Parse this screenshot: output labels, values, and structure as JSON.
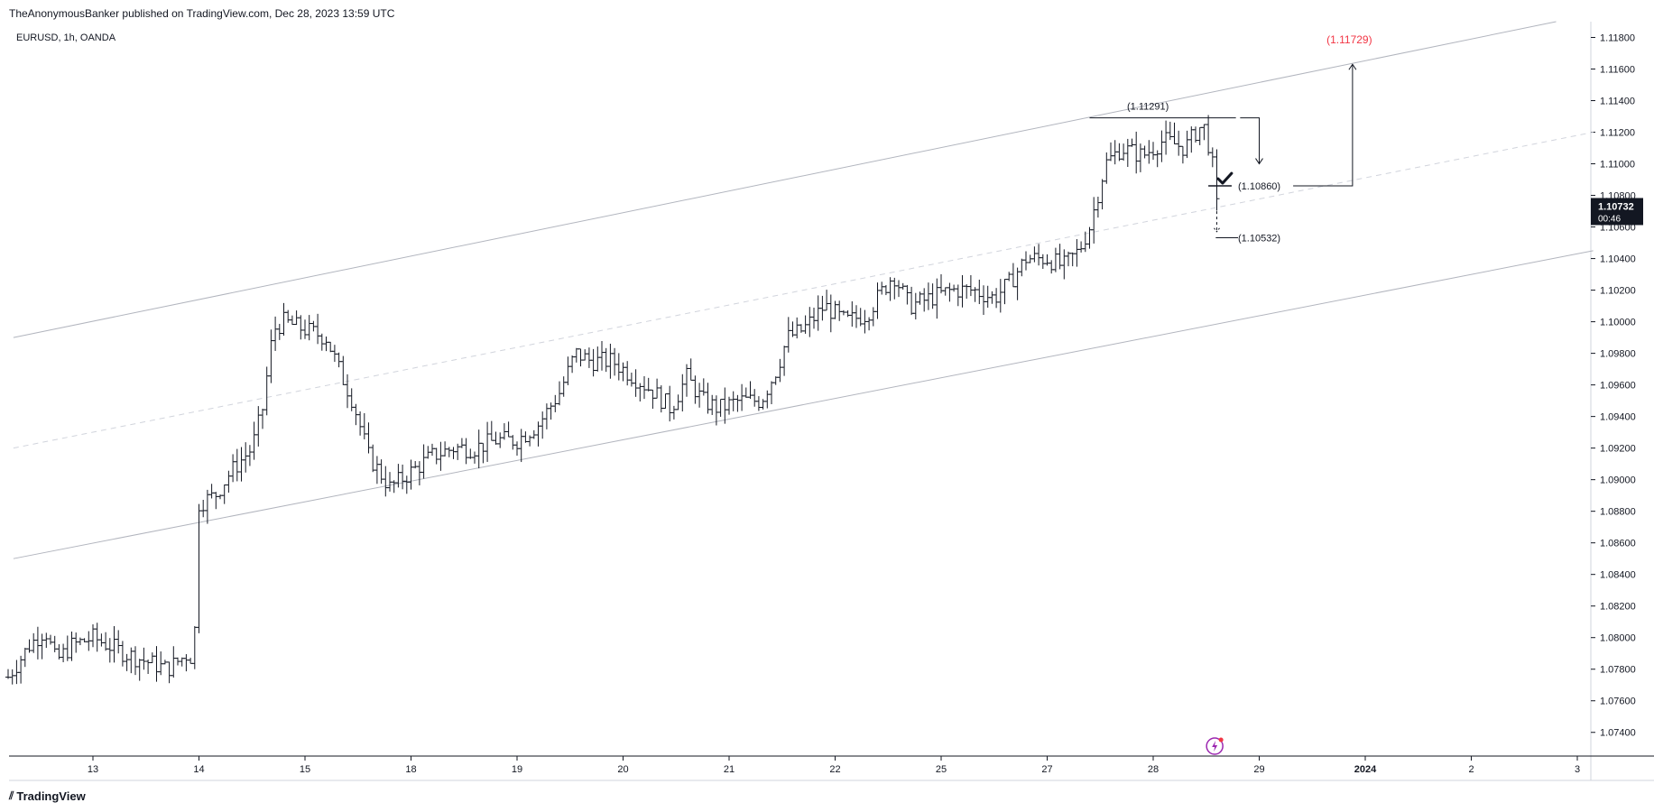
{
  "header": {
    "publisher_line": "TheAnonymousBanker published on TradingView.com, Dec 28, 2023 13:59 UTC"
  },
  "symbol_label": "EURUSD, 1h, OANDA",
  "footer": {
    "brand": "TradingView",
    "logo_glyph": "⫽"
  },
  "chart_data": {
    "type": "ohlc-bar",
    "symbol": "EURUSD",
    "interval": "1h",
    "source": "OANDA",
    "ylim": [
      1.0725,
      1.119
    ],
    "y_ticks": [
      {
        "label": "1.11800",
        "value": 1.118
      },
      {
        "label": "1.11600",
        "value": 1.116
      },
      {
        "label": "1.11400",
        "value": 1.114
      },
      {
        "label": "1.11200",
        "value": 1.112
      },
      {
        "label": "1.11000",
        "value": 1.11
      },
      {
        "label": "1.10800",
        "value": 1.108
      },
      {
        "label": "1.10600",
        "value": 1.106
      },
      {
        "label": "1.10400",
        "value": 1.104
      },
      {
        "label": "1.10200",
        "value": 1.102
      },
      {
        "label": "1.10000",
        "value": 1.1
      },
      {
        "label": "1.09800",
        "value": 1.098
      },
      {
        "label": "1.09600",
        "value": 1.096
      },
      {
        "label": "1.09400",
        "value": 1.094
      },
      {
        "label": "1.09200",
        "value": 1.092
      },
      {
        "label": "1.09000",
        "value": 1.09
      },
      {
        "label": "1.08800",
        "value": 1.088
      },
      {
        "label": "1.08600",
        "value": 1.086
      },
      {
        "label": "1.08400",
        "value": 1.084
      },
      {
        "label": "1.08200",
        "value": 1.082
      },
      {
        "label": "1.08000",
        "value": 1.08
      },
      {
        "label": "1.07800",
        "value": 1.078
      },
      {
        "label": "1.07600",
        "value": 1.076
      },
      {
        "label": "1.07400",
        "value": 1.074
      }
    ],
    "x_ticks": [
      {
        "label": "13",
        "slot": 0
      },
      {
        "label": "14",
        "slot": 1
      },
      {
        "label": "15",
        "slot": 2
      },
      {
        "label": "18",
        "slot": 3
      },
      {
        "label": "19",
        "slot": 4
      },
      {
        "label": "20",
        "slot": 5
      },
      {
        "label": "21",
        "slot": 6
      },
      {
        "label": "22",
        "slot": 7
      },
      {
        "label": "25",
        "slot": 8
      },
      {
        "label": "27",
        "slot": 9
      },
      {
        "label": "28",
        "slot": 10
      },
      {
        "label": "29",
        "slot": 11
      },
      {
        "label": "2024",
        "slot": 12,
        "bold": true
      },
      {
        "label": "2",
        "slot": 13
      },
      {
        "label": "3",
        "slot": 14
      }
    ],
    "x_slot_range": [
      -0.8,
      14.2
    ],
    "current_price": {
      "label": "1.10732",
      "value": 1.10732,
      "countdown": "00:46"
    },
    "price_path": [
      [
        -0.8,
        1.0775
      ],
      [
        -0.6,
        1.0795
      ],
      [
        -0.45,
        1.0805
      ],
      [
        -0.35,
        1.0785
      ],
      [
        -0.2,
        1.0795
      ],
      [
        0.0,
        1.08
      ],
      [
        0.3,
        1.079
      ],
      [
        0.5,
        1.0785
      ],
      [
        0.7,
        1.078
      ],
      [
        0.9,
        1.079
      ],
      [
        0.95,
        1.0785
      ],
      [
        1.0,
        1.0885
      ],
      [
        1.15,
        1.089
      ],
      [
        1.3,
        1.0905
      ],
      [
        1.5,
        1.092
      ],
      [
        1.6,
        1.0945
      ],
      [
        1.7,
        1.0995
      ],
      [
        1.8,
        1.1
      ],
      [
        2.0,
        1.0995
      ],
      [
        2.2,
        1.099
      ],
      [
        2.35,
        1.0965
      ],
      [
        2.45,
        1.095
      ],
      [
        2.6,
        1.0915
      ],
      [
        2.8,
        1.0895
      ],
      [
        3.0,
        1.0905
      ],
      [
        3.2,
        1.0915
      ],
      [
        3.4,
        1.092
      ],
      [
        3.6,
        1.092
      ],
      [
        3.8,
        1.0925
      ],
      [
        4.0,
        1.0925
      ],
      [
        4.2,
        1.0935
      ],
      [
        4.4,
        1.0955
      ],
      [
        4.55,
        1.098
      ],
      [
        4.7,
        1.0975
      ],
      [
        4.9,
        1.0975
      ],
      [
        5.1,
        1.0965
      ],
      [
        5.3,
        1.0955
      ],
      [
        5.45,
        1.0945
      ],
      [
        5.6,
        1.0965
      ],
      [
        5.75,
        1.095
      ],
      [
        5.9,
        1.0945
      ],
      [
        6.1,
        1.095
      ],
      [
        6.3,
        1.095
      ],
      [
        6.45,
        1.097
      ],
      [
        6.55,
        1.099
      ],
      [
        6.7,
        1.0995
      ],
      [
        6.9,
        1.101
      ],
      [
        7.1,
        1.1
      ],
      [
        7.3,
        1.1005
      ],
      [
        7.45,
        1.102
      ],
      [
        7.55,
        1.103
      ],
      [
        7.7,
        1.101
      ],
      [
        7.9,
        1.1015
      ],
      [
        8.1,
        1.102
      ],
      [
        8.3,
        1.102
      ],
      [
        8.5,
        1.1015
      ],
      [
        8.65,
        1.1025
      ],
      [
        8.8,
        1.104
      ],
      [
        9.0,
        1.104
      ],
      [
        9.15,
        1.1035
      ],
      [
        9.3,
        1.1045
      ],
      [
        9.4,
        1.106
      ],
      [
        9.55,
        1.11
      ],
      [
        9.7,
        1.111
      ],
      [
        9.9,
        1.1105
      ],
      [
        10.1,
        1.1115
      ],
      [
        10.3,
        1.111
      ],
      [
        10.4,
        1.112
      ],
      [
        10.47,
        1.1125
      ],
      [
        10.55,
        1.1105
      ],
      [
        10.6,
        1.1073
      ]
    ],
    "annotations": [
      {
        "label": "(1.11291)",
        "value": 1.11291,
        "color": "#131722"
      },
      {
        "label": "(1.10860)",
        "value": 1.1086,
        "color": "#131722"
      },
      {
        "label": "(1.10532)",
        "value": 1.10532,
        "color": "#131722"
      },
      {
        "label": "(1.11729)",
        "value": 1.11729,
        "color": "#f23645"
      }
    ],
    "channel": {
      "upper": [
        [
          -0.75,
          1.099
        ],
        [
          13.8,
          1.119
        ]
      ],
      "lower": [
        [
          -0.75,
          1.085
        ],
        [
          14.15,
          1.1045
        ]
      ],
      "middle_dashed": [
        [
          -0.75,
          1.092
        ],
        [
          14.15,
          1.112
        ]
      ]
    }
  },
  "colors": {
    "candle": "#131722",
    "grid_axis": "#131722",
    "channel": "#b2b5be",
    "target": "#f23645",
    "price_tag_bg": "#131722",
    "price_tag_fg": "#ffffff",
    "lightning": "#9c27b0"
  },
  "icons": {
    "check": "check-icon",
    "lightning": "lightning-icon",
    "logo": "tradingview-logo-icon"
  }
}
